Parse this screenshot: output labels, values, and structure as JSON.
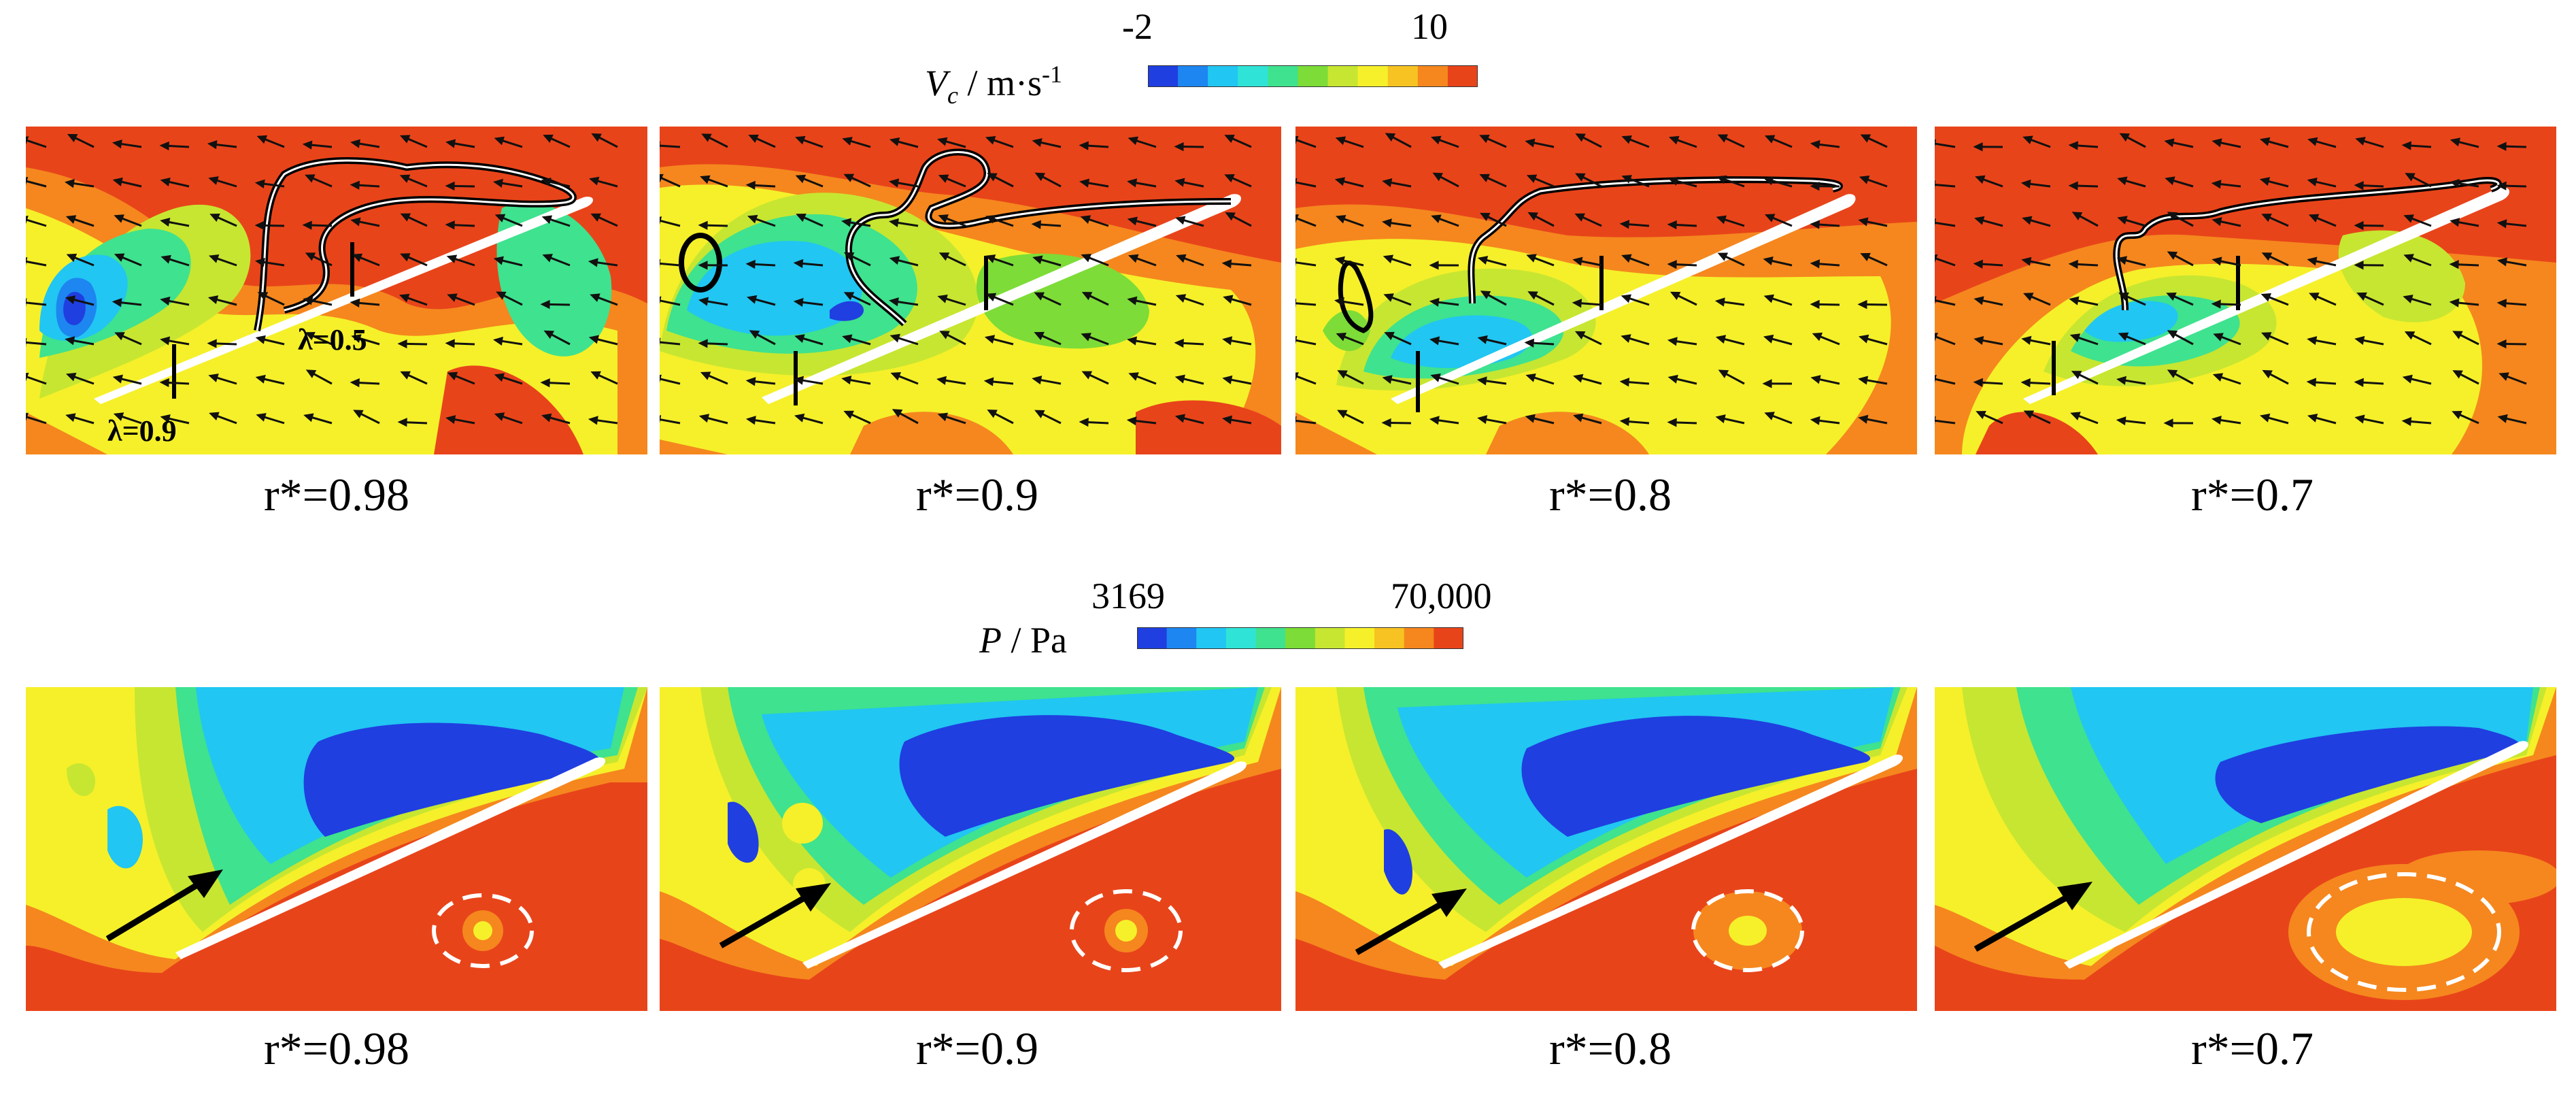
{
  "colorbar_velocity": {
    "label_var": "V",
    "label_sub": "c",
    "label_unit": " / m·s",
    "label_sup": "-1",
    "min": "-2",
    "max": "10",
    "colors": [
      "#1f3fe0",
      "#1d86f0",
      "#21c6f2",
      "#2fe4d6",
      "#3fe28e",
      "#7ddc37",
      "#c7e631",
      "#f5f02a",
      "#f7c322",
      "#f5871e",
      "#e8441a"
    ]
  },
  "colorbar_pressure": {
    "label_var": "P",
    "label_unit": " / Pa",
    "min": "3169",
    "max": "70,000",
    "colors": [
      "#1f3fe0",
      "#1d86f0",
      "#21c6f2",
      "#2fe4d6",
      "#3fe28e",
      "#7ddc37",
      "#c7e631",
      "#f5f02a",
      "#f7c322",
      "#f5871e",
      "#e8441a"
    ]
  },
  "velocity_panels": [
    {
      "label": "r*=0.98"
    },
    {
      "label": "r*=0.9"
    },
    {
      "label": "r*=0.8"
    },
    {
      "label": "r*=0.7"
    }
  ],
  "pressure_panels": [
    {
      "label": "r*=0.98"
    },
    {
      "label": "r*=0.9"
    },
    {
      "label": "r*=0.8"
    },
    {
      "label": "r*=0.7"
    }
  ],
  "annotations": {
    "lambda_a": "λ=0.5",
    "lambda_b": "λ=0.9"
  }
}
